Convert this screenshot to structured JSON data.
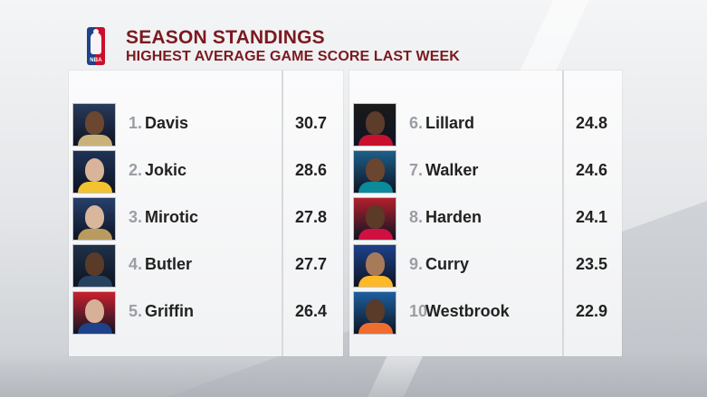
{
  "header": {
    "title": "SEASON STANDINGS",
    "subtitle": "HIGHEST AVERAGE GAME SCORE LAST WEEK",
    "logo_text": "NBA"
  },
  "left": [
    {
      "rank": "1.",
      "name": "Davis",
      "score": "30.7",
      "photo_bg": "#2a3a5c",
      "skin": "#6b4631",
      "jersey": "#c9b27a"
    },
    {
      "rank": "2.",
      "name": "Jokic",
      "score": "28.6",
      "photo_bg": "#1e3256",
      "skin": "#d8b49a",
      "jersey": "#f2c230"
    },
    {
      "rank": "3.",
      "name": "Mirotic",
      "score": "27.8",
      "photo_bg": "#27406b",
      "skin": "#d9b79c",
      "jersey": "#b99b5f"
    },
    {
      "rank": "4.",
      "name": "Butler",
      "score": "27.7",
      "photo_bg": "#1f3148",
      "skin": "#5a3b28",
      "jersey": "#26425f"
    },
    {
      "rank": "5.",
      "name": "Griffin",
      "score": "26.4",
      "photo_bg": "#c8202f",
      "skin": "#d7b098",
      "jersey": "#1d428a"
    }
  ],
  "right": [
    {
      "rank": "6.",
      "name": "Lillard",
      "score": "24.8",
      "photo_bg": "#1a1a1a",
      "skin": "#5c3c2a",
      "jersey": "#c8102e"
    },
    {
      "rank": "7.",
      "name": "Walker",
      "score": "24.6",
      "photo_bg": "#1d5f8a",
      "skin": "#6a4530",
      "jersey": "#0a8a9a"
    },
    {
      "rank": "8.",
      "name": "Harden",
      "score": "24.1",
      "photo_bg": "#b21f2d",
      "skin": "#5b3a28",
      "jersey": "#ce1141"
    },
    {
      "rank": "9.",
      "name": "Curry",
      "score": "23.5",
      "photo_bg": "#1d428a",
      "skin": "#a77a5a",
      "jersey": "#fdb927"
    },
    {
      "rank": "10.",
      "name": "Westbrook",
      "score": "22.9",
      "photo_bg": "#1d5f9e",
      "skin": "#5a3a28",
      "jersey": "#ef6d2f"
    }
  ],
  "colors": {
    "title": "#7a1a1f",
    "rank": "#9a9ea4",
    "text": "#222222"
  }
}
